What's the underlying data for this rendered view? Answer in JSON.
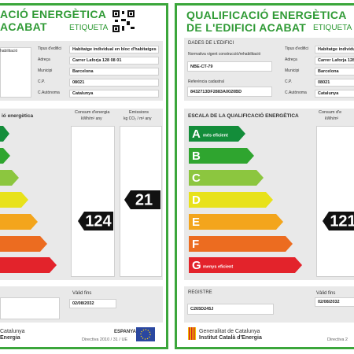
{
  "left_label": {
    "title_line1": "ACIÓ ENERGÈTICA",
    "title_line2": "ACABAT",
    "tag": "ETIQUETA",
    "cropped_field": "habilitació",
    "fields": [
      {
        "label": "Tipus d'edifici",
        "value": "Habitatge individual en bloc d'habitatges"
      },
      {
        "label": "Adreça",
        "value": "Carrer Laforja 128 08 01"
      },
      {
        "label": "Municipi",
        "value": "Barcelona"
      },
      {
        "label": "C.P.",
        "value": "08021"
      },
      {
        "label": "C.Autònoma",
        "value": "Catalunya"
      }
    ],
    "scale_title": "ió energètica",
    "consumption_header": "Consum d'energia",
    "consumption_unit": "kWh/m² any",
    "emissions_header": "Emissions",
    "emissions_unit": "kg CO₂ / m² any",
    "emissions_value": "21",
    "consumption_value": "124",
    "valid_label": "Vàlid fins",
    "valid_value": "02/08/2032",
    "footer_line1": "Catalunya",
    "footer_line2": "Energia",
    "country": "ESPANYA",
    "directive": "Directiva 2010 / 31 / UE"
  },
  "right_label": {
    "title_line1": "QUALIFICACIÓ ENERGÈTICA",
    "title_line2": "DE L'EDIFICI ACABAT",
    "tag": "ETIQUETA",
    "section_title": "DADES DE L'EDIFICI",
    "norm_label": "Normativa vigent construcció/rehabilitació",
    "norm_value": "NBE-CT-79",
    "cadastral_label": "Referència cadastral",
    "cadastral_value": "8432713DF2883A0020BD",
    "fields": [
      {
        "label": "Tipus d'edifici",
        "value": "Habitatge individua"
      },
      {
        "label": "Adreça",
        "value": "Carrer Laforja 128"
      },
      {
        "label": "Municipi",
        "value": "Barcelona"
      },
      {
        "label": "C.P.",
        "value": "08021"
      },
      {
        "label": "C.Autònoma",
        "value": "Catalunya"
      }
    ],
    "scale_title": "ESCALA DE LA QUALIFICACIÓ ENERGÈTICA",
    "consumption_header": "Consum d'e",
    "consumption_unit": "kWh/m²",
    "grades": [
      "A",
      "B",
      "C",
      "D",
      "E",
      "F",
      "G"
    ],
    "best_note": "més eficient",
    "worst_note": "menys eficient",
    "consumption_value": "121",
    "registry_label": "REGISTRE",
    "registry_value": "C265D245J",
    "valid_label": "Vàlid fins",
    "valid_value": "02/08/2032",
    "org_line1": "Generalitat de Catalunya",
    "org_line2": "Institut Català d'Energia",
    "directive": "Directiva 2"
  }
}
